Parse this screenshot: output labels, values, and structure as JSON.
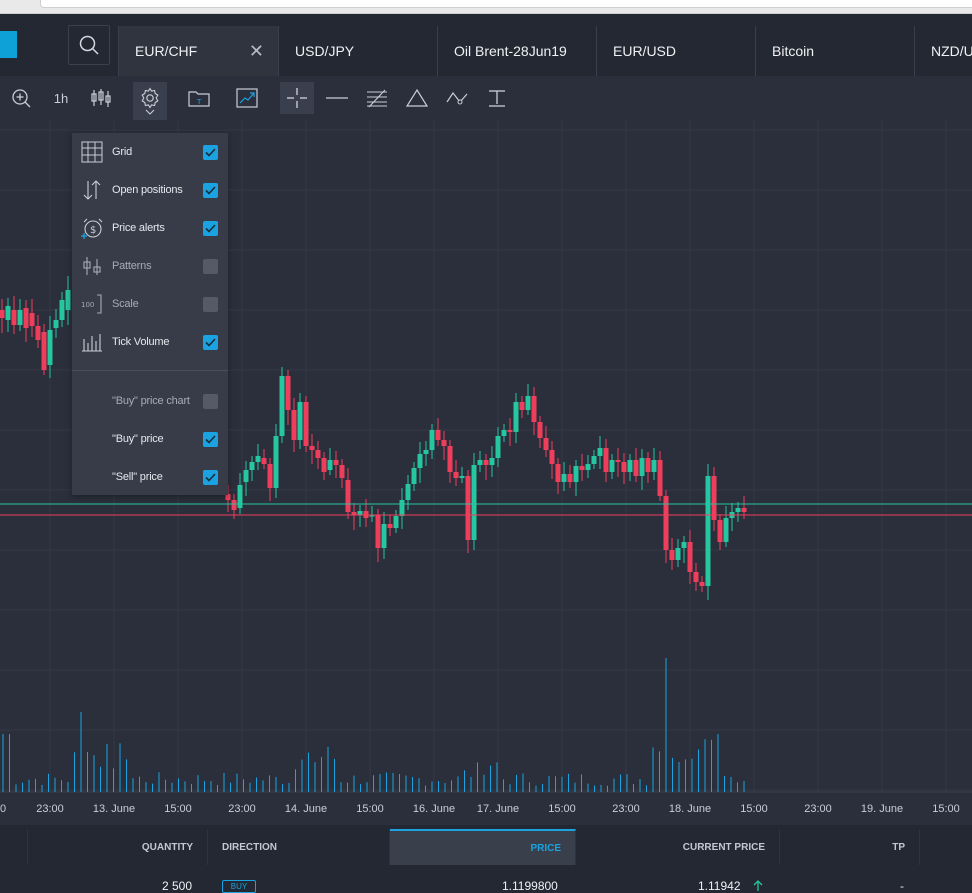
{
  "tabs": [
    {
      "label": "EUR/CHF",
      "active": true
    },
    {
      "label": "USD/JPY",
      "active": false
    },
    {
      "label": "Oil Brent-28Jun19",
      "active": false
    },
    {
      "label": "EUR/USD",
      "active": false
    },
    {
      "label": "Bitcoin",
      "active": false
    },
    {
      "label": "NZD/US",
      "active": false
    }
  ],
  "toolbar": {
    "timeframe": "1h",
    "icons": [
      "zoom-in-icon",
      "candlestick-icon",
      "settings-gear-icon",
      "chevron-down-icon",
      "folder-icon",
      "trend-chart-icon",
      "crosshair-icon",
      "horizontal-line-icon",
      "fibonacci-icon",
      "triangle-icon",
      "wave-icon",
      "text-tool-icon"
    ]
  },
  "settings_menu": {
    "items": [
      {
        "label": "Grid",
        "checked": true,
        "enabled": true
      },
      {
        "label": "Open positions",
        "checked": true,
        "enabled": true
      },
      {
        "label": "Price alerts",
        "checked": true,
        "enabled": true
      },
      {
        "label": "Patterns",
        "checked": false,
        "enabled": false
      },
      {
        "label": "Scale",
        "checked": false,
        "enabled": false
      },
      {
        "label": "Tick Volume",
        "checked": true,
        "enabled": true
      },
      {
        "label": "\"Buy\" price chart",
        "checked": false,
        "enabled": false
      },
      {
        "label": "\"Buy\" price",
        "checked": true,
        "enabled": true
      },
      {
        "label": "\"Sell\" price",
        "checked": true,
        "enabled": true
      }
    ]
  },
  "x_axis_labels": [
    "0",
    "23:00",
    "13. June",
    "15:00",
    "23:00",
    "14. June",
    "15:00",
    "16. June",
    "17. June",
    "15:00",
    "23:00",
    "18. June",
    "15:00",
    "23:00",
    "19. June",
    "15:00"
  ],
  "positions_table": {
    "headers": {
      "quantity": "QUANTITY",
      "direction": "DIRECTION",
      "price": "PRICE",
      "current_price": "CURRENT PRICE",
      "tp": "TP"
    },
    "row": {
      "quantity": "2 500",
      "direction": "BUY",
      "price": "1.1199800",
      "current_price": "1.11942",
      "tp": "-"
    }
  },
  "colors": {
    "up": "#26c6a0",
    "down": "#ef3e5c",
    "accent": "#1aa3e0",
    "buy_line": "#26c6a0",
    "sell_line": "#ef3e5c",
    "volume": "#1aa3e0"
  }
}
